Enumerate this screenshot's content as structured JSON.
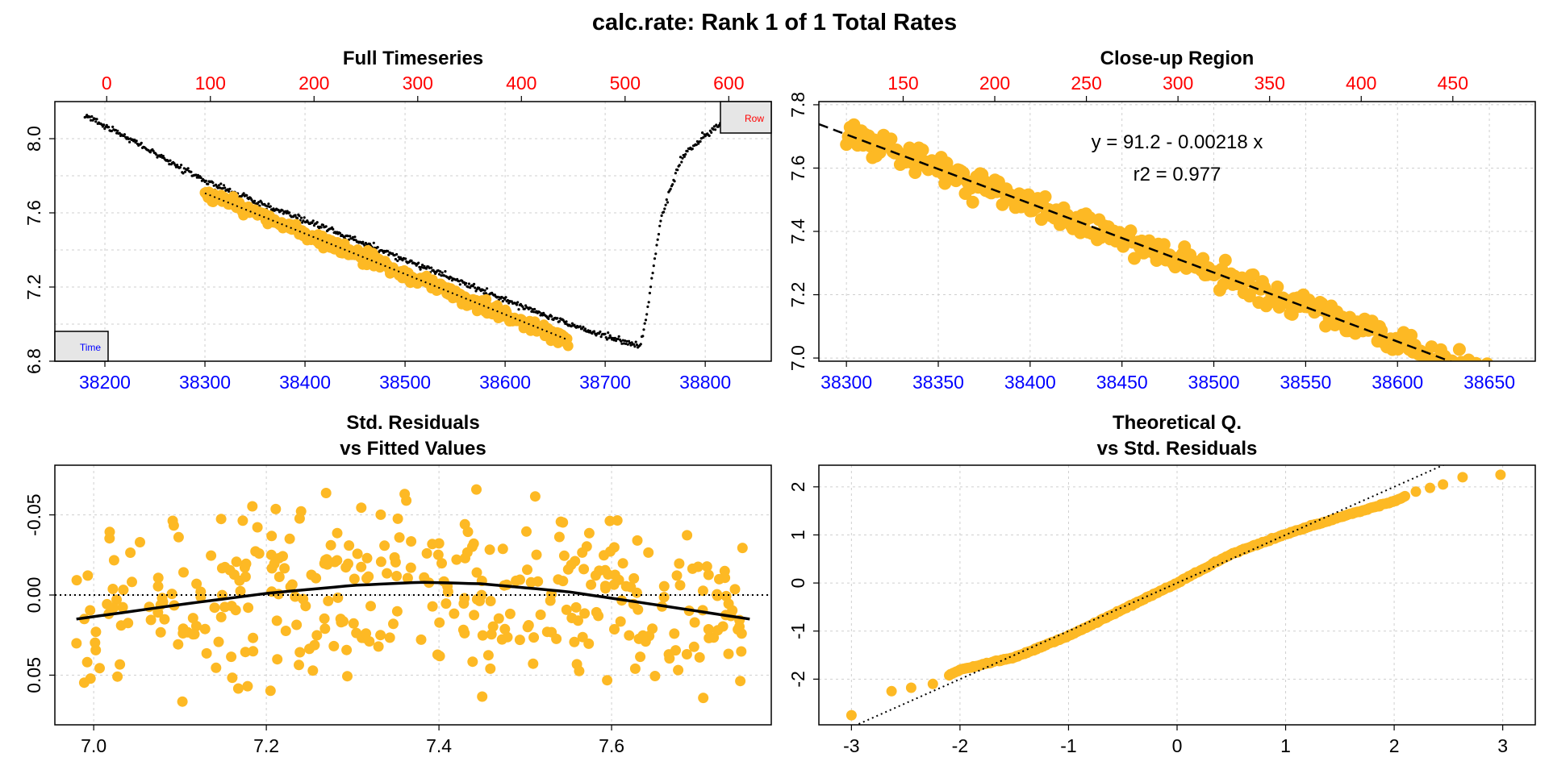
{
  "title": "calc.rate: Rank 1 of 1 Total Rates",
  "colors": {
    "highlight": "#FDB924",
    "background_points": "#000000",
    "row_axis": "#FF0000",
    "time_axis": "#0000FF",
    "tag_fill": "#E6E6E6"
  },
  "chart_data": [
    {
      "id": "full",
      "type": "scatter",
      "title": "Full Timeseries",
      "x_time_ticks": [
        38200,
        38300,
        38400,
        38500,
        38600,
        38700,
        38800
      ],
      "x_row_ticks": [
        0,
        100,
        200,
        300,
        400,
        500,
        600
      ],
      "y_ticks": [
        "6.8",
        "7.2",
        "7.6",
        "8.0"
      ],
      "xlim": [
        38150,
        38866
      ],
      "ylim": [
        6.8,
        8.2
      ],
      "row_lim": [
        -50,
        641
      ],
      "tags": {
        "time": "Time",
        "row": "Row"
      },
      "background_series": {
        "descriptor": "full oxygen timeseries, rows 0-640 (small black points)",
        "anchors_time": [
          38180,
          38300,
          38300,
          38663,
          38663,
          38735,
          38740,
          38755,
          38775,
          38795,
          38815
        ],
        "anchors_y": [
          8.13,
          7.77,
          7.77,
          7.0,
          7.0,
          6.88,
          7.0,
          7.55,
          7.88,
          8.0,
          8.08
        ]
      },
      "highlight_series": {
        "descriptor": "selected subset, rows 120-480",
        "time_range": [
          38300,
          38663
        ],
        "row_range": [
          120,
          480
        ],
        "regression": {
          "slope": -0.00218,
          "intercept": 91.2,
          "style": "dotted"
        }
      }
    },
    {
      "id": "closeup",
      "type": "scatter",
      "title": "Close-up Region",
      "x_time_ticks": [
        38300,
        38350,
        38400,
        38450,
        38500,
        38550,
        38600,
        38650
      ],
      "x_row_ticks": [
        150,
        200,
        250,
        300,
        350,
        400,
        450
      ],
      "y_ticks": [
        "7.0",
        "7.2",
        "7.4",
        "7.6",
        "7.8"
      ],
      "xlim": [
        38285,
        38675
      ],
      "ylim": [
        6.99,
        7.81
      ],
      "row_lim": [
        104,
        495
      ],
      "equation": "y = 91.2 - 0.00218 x",
      "r2": "r2 = 0.977",
      "regression": {
        "slope": -0.00218,
        "intercept": 91.2,
        "style": "dashed"
      }
    },
    {
      "id": "resid",
      "type": "scatter",
      "title": [
        "Std. Residuals",
        "vs Fitted Values"
      ],
      "x_ticks": [
        "7.0",
        "7.2",
        "7.4",
        "7.6"
      ],
      "y_ticks": [
        "0.05",
        "0.00",
        "-0.05"
      ],
      "xlim": [
        6.955,
        7.785
      ],
      "ylim": [
        0.081,
        -0.081
      ],
      "zero_line": 0,
      "smooth": {
        "x": [
          6.98,
          7.1,
          7.2,
          7.3,
          7.38,
          7.45,
          7.55,
          7.65,
          7.76
        ],
        "y": [
          0.015,
          0.006,
          -0.001,
          -0.006,
          -0.008,
          -0.007,
          -0.002,
          0.006,
          0.015
        ]
      }
    },
    {
      "id": "qq",
      "type": "scatter",
      "title": [
        "Theoretical Q.",
        "vs Std. Residuals"
      ],
      "x_ticks": [
        "-3",
        "-2",
        "-1",
        "0",
        "1",
        "2",
        "3"
      ],
      "y_ticks": [
        "-2",
        "-1",
        "0",
        "1",
        "2"
      ],
      "xlim": [
        -3.3,
        3.3
      ],
      "ylim": [
        -2.95,
        2.45
      ],
      "reference_line": {
        "slope": 1,
        "intercept": 0,
        "style": "dotted"
      },
      "points_anchors_x": [
        -3.0,
        -2.63,
        -2.25,
        -2.0,
        -1.5,
        -1.0,
        -0.5,
        0.0,
        0.5,
        1.0,
        1.5,
        2.0,
        2.2,
        2.45,
        2.63,
        2.98
      ],
      "points_anchors_y": [
        -2.75,
        -2.25,
        -2.1,
        -1.8,
        -1.55,
        -1.1,
        -0.55,
        0.0,
        0.6,
        1.02,
        1.37,
        1.7,
        1.9,
        2.05,
        2.2,
        2.25
      ]
    }
  ]
}
